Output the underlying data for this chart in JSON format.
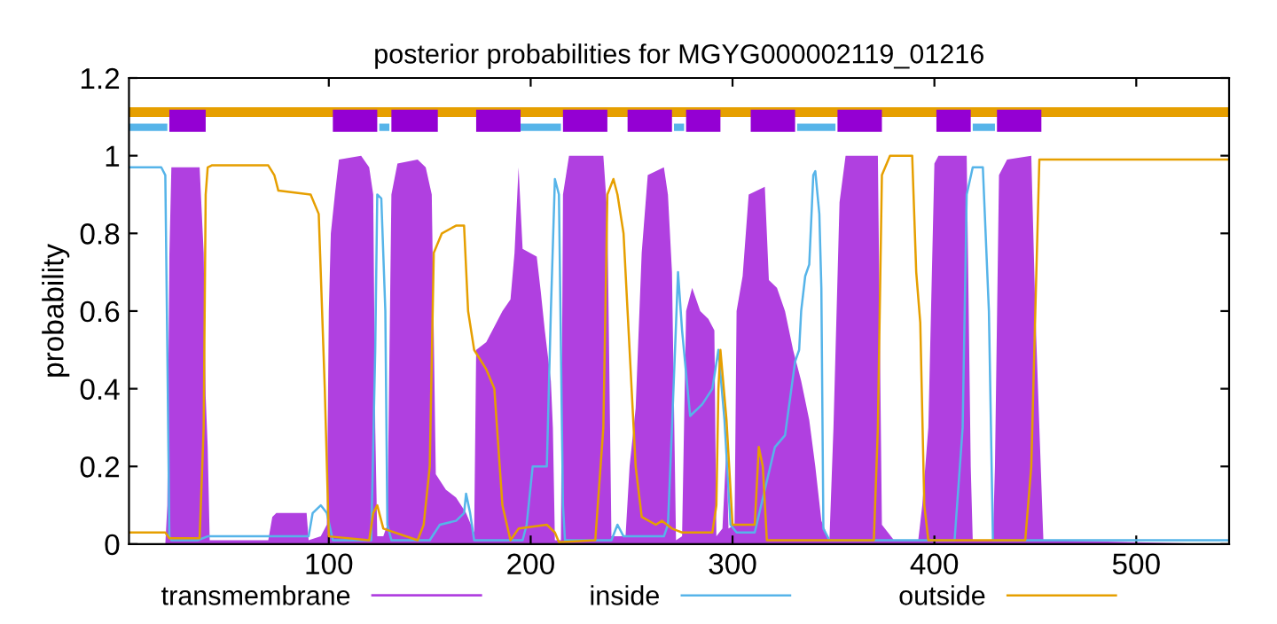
{
  "chart_data": {
    "type": "line",
    "title": "posterior probabilities for MGYG000002119_01216",
    "ylabel": "probability",
    "xlim": [
      1,
      546
    ],
    "xticks": [
      100,
      200,
      300,
      400,
      500
    ],
    "ylim": [
      0,
      1.2
    ],
    "yticks": [
      0,
      0.2,
      0.4,
      0.6,
      0.8,
      1,
      1.2
    ],
    "grid": false,
    "legend": "bottom",
    "marker": "none",
    "line_style": "solid",
    "series": [
      {
        "name": "transmembrane",
        "type": "area",
        "color": "#b040e0",
        "x": [
          1,
          19,
          20,
          21,
          22,
          36,
          38,
          39,
          40,
          41,
          70,
          72,
          74,
          89,
          90,
          96,
          99,
          100,
          101,
          103,
          105,
          116,
          120,
          122,
          123,
          124,
          127,
          129,
          131,
          134,
          144,
          148,
          151,
          153,
          158,
          163,
          168,
          172,
          173,
          178,
          182,
          186,
          190,
          192,
          194,
          196,
          203,
          205,
          207,
          210,
          211,
          212,
          215,
          216,
          219,
          236,
          238,
          240,
          247,
          249,
          252,
          255,
          258,
          266,
          268,
          270,
          272,
          275,
          277,
          280,
          284,
          288,
          291,
          292,
          295,
          297,
          298,
          301,
          302,
          305,
          308,
          316,
          318,
          322,
          326,
          330,
          334,
          338,
          341,
          344,
          348,
          350,
          353,
          356,
          372,
          374,
          380,
          392,
          394,
          397,
          400,
          402,
          416,
          418,
          419,
          429,
          430,
          432,
          436,
          448,
          450,
          452,
          454,
          546
        ],
        "values": [
          0,
          0,
          0.1,
          0.74,
          0.97,
          0.97,
          0.75,
          0.38,
          0.25,
          0.01,
          0.01,
          0.07,
          0.08,
          0.08,
          0.01,
          0.02,
          0.05,
          0.6,
          0.8,
          0.9,
          0.99,
          1.0,
          0.97,
          0.9,
          0.3,
          0.02,
          0.02,
          0.05,
          0.9,
          0.98,
          0.99,
          0.97,
          0.9,
          0.18,
          0.14,
          0.12,
          0.08,
          0.03,
          0.5,
          0.52,
          0.56,
          0.6,
          0.63,
          0.75,
          0.97,
          0.76,
          0.74,
          0.65,
          0.55,
          0.42,
          0.3,
          0.01,
          0.01,
          0.9,
          1.0,
          1.0,
          0.85,
          0.02,
          0.02,
          0.2,
          0.35,
          0.75,
          0.95,
          0.97,
          0.9,
          0.7,
          0.01,
          0.02,
          0.6,
          0.66,
          0.6,
          0.58,
          0.55,
          0.02,
          0.04,
          0.25,
          0.04,
          0.05,
          0.6,
          0.69,
          0.9,
          0.92,
          0.68,
          0.66,
          0.6,
          0.5,
          0.42,
          0.32,
          0.2,
          0.06,
          0.01,
          0.3,
          0.88,
          1.0,
          1.0,
          0.05,
          0.01,
          0.01,
          0.1,
          0.3,
          0.98,
          1.0,
          1.0,
          0.2,
          0.01,
          0.01,
          0.2,
          0.95,
          0.99,
          1.0,
          0.6,
          0.3,
          0.01,
          0
        ]
      },
      {
        "name": "inside",
        "color": "#56b4e9",
        "x": [
          1,
          17,
          19,
          20,
          21,
          22,
          35,
          40,
          90,
          92,
          96,
          99,
          102,
          121,
          123,
          124,
          126,
          128,
          129,
          131,
          150,
          155,
          163,
          167,
          168,
          170,
          172,
          196,
          198,
          201,
          208,
          210,
          212,
          214,
          216,
          217,
          240,
          243,
          246,
          266,
          268,
          270,
          273,
          275,
          279,
          285,
          290,
          293,
          296,
          299,
          302,
          311,
          321,
          326,
          331,
          333,
          334,
          336,
          338,
          340,
          341,
          343,
          344,
          345,
          348,
          410,
          414,
          416,
          419,
          424,
          427,
          429,
          546
        ],
        "values": [
          0.97,
          0.97,
          0.95,
          0.5,
          0.02,
          0.01,
          0.01,
          0.02,
          0.02,
          0.08,
          0.1,
          0.08,
          0.01,
          0.01,
          0.5,
          0.9,
          0.89,
          0.6,
          0.05,
          0.01,
          0.01,
          0.05,
          0.06,
          0.08,
          0.13,
          0.08,
          0.01,
          0.01,
          0.05,
          0.2,
          0.2,
          0.6,
          0.94,
          0.9,
          0.1,
          0.01,
          0.01,
          0.05,
          0.02,
          0.02,
          0.05,
          0.3,
          0.7,
          0.55,
          0.33,
          0.36,
          0.4,
          0.5,
          0.32,
          0.05,
          0.03,
          0.03,
          0.25,
          0.28,
          0.47,
          0.5,
          0.6,
          0.69,
          0.72,
          0.95,
          0.96,
          0.85,
          0.66,
          0.04,
          0.01,
          0.01,
          0.3,
          0.9,
          0.97,
          0.97,
          0.6,
          0.01,
          0.01
        ]
      },
      {
        "name": "outside",
        "color": "#e69f00",
        "x": [
          1,
          19,
          21,
          36,
          38,
          39,
          40,
          42,
          70,
          73,
          75,
          91,
          95,
          98,
          100,
          120,
          122,
          124,
          127,
          144,
          147,
          150,
          152,
          156,
          163,
          167,
          169,
          172,
          178,
          182,
          186,
          190,
          194,
          208,
          212,
          214,
          232,
          236,
          238,
          241,
          243,
          246,
          248,
          252,
          255,
          262,
          265,
          270,
          275,
          290,
          292,
          293,
          294,
          297,
          300,
          311,
          313,
          315,
          317,
          370,
          372,
          374,
          378,
          389,
          391,
          393,
          395,
          397,
          445,
          448,
          450,
          452,
          546
        ],
        "values": [
          0.03,
          0.03,
          0.015,
          0.015,
          0.3,
          0.9,
          0.97,
          0.975,
          0.975,
          0.95,
          0.91,
          0.9,
          0.85,
          0.4,
          0.02,
          0.01,
          0.08,
          0.1,
          0.04,
          0.01,
          0.05,
          0.2,
          0.75,
          0.8,
          0.82,
          0.82,
          0.6,
          0.5,
          0.45,
          0.4,
          0.1,
          0.01,
          0.04,
          0.05,
          0.03,
          0.005,
          0.01,
          0.3,
          0.9,
          0.94,
          0.9,
          0.8,
          0.6,
          0.2,
          0.07,
          0.05,
          0.06,
          0.04,
          0.03,
          0.03,
          0.1,
          0.4,
          0.5,
          0.32,
          0.05,
          0.05,
          0.25,
          0.2,
          0.01,
          0.01,
          0.3,
          0.95,
          1.0,
          1.0,
          0.7,
          0.57,
          0.1,
          0.01,
          0.01,
          0.2,
          0.6,
          0.99,
          0.99
        ]
      },
      {
        "color": "#56b4e9",
        "x": [
          1,
          20,
          21,
          125,
          130,
          131,
          195,
          215,
          216,
          271,
          276,
          277,
          332,
          351,
          352,
          419,
          430
        ],
        "values": [
          1.073,
          1.073,
          null,
          1.073,
          1.073,
          null,
          1.073,
          1.073,
          null,
          1.073,
          1.073,
          null,
          1.073,
          1.073,
          null,
          1.073,
          1.073
        ]
      },
      {
        "color": "#e69f00",
        "x": [
          1,
          546
        ],
        "values": [
          1.112,
          1.112
        ]
      },
      {
        "color": "#9400d3",
        "x": [
          21,
          39,
          40,
          102,
          124,
          125,
          131,
          154,
          155,
          173,
          195,
          196,
          216,
          238,
          239,
          248,
          270,
          271,
          277,
          294,
          295,
          309,
          331,
          332,
          352,
          374,
          375,
          401,
          418,
          419,
          431,
          453
        ],
        "values": [
          1.09,
          1.09,
          null,
          1.09,
          1.09,
          null,
          1.09,
          1.09,
          null,
          1.09,
          1.09,
          null,
          1.09,
          1.09,
          null,
          1.09,
          1.09,
          null,
          1.09,
          1.09,
          null,
          1.09,
          1.09,
          null,
          1.09,
          1.09,
          null,
          1.09,
          1.09,
          null,
          1.09,
          1.09
        ]
      }
    ]
  }
}
